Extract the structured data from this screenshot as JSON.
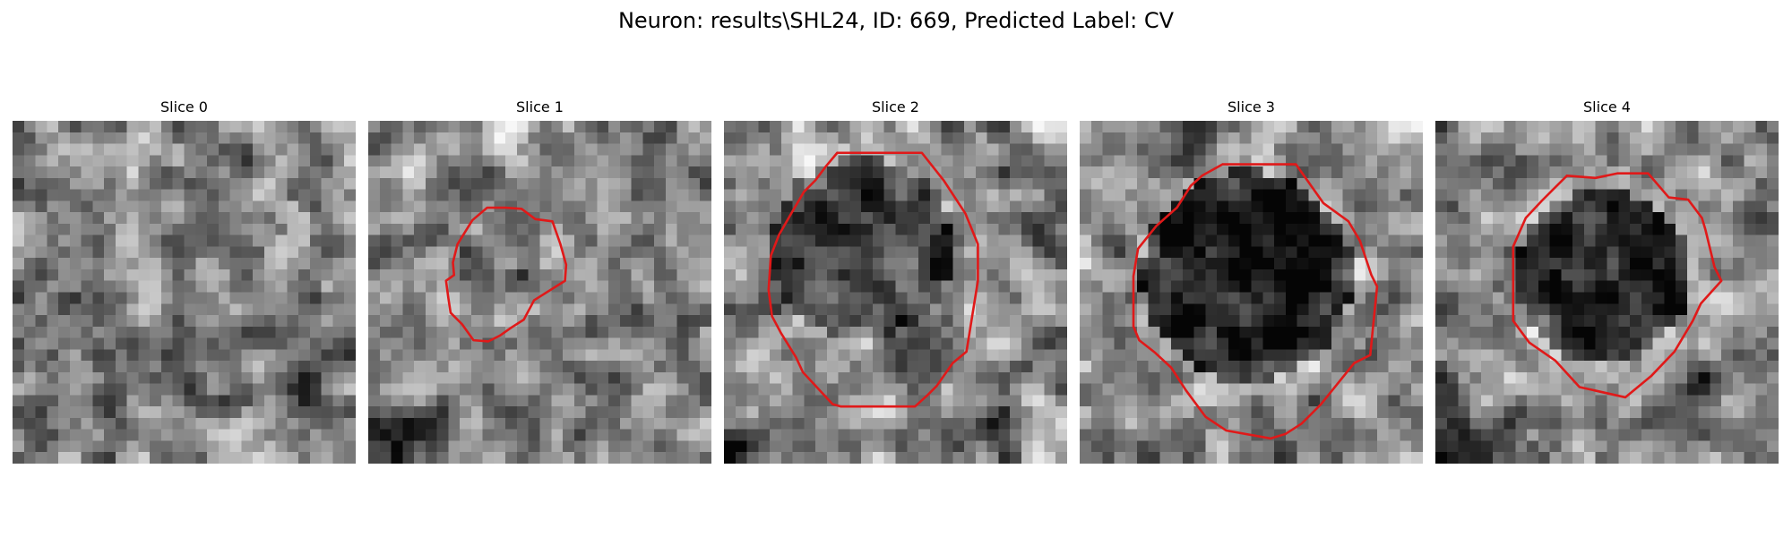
{
  "figure": {
    "title": "Neuron: results\\SHL24, ID: 669, Predicted Label: CV"
  },
  "colors": {
    "background": "#ffffff",
    "contour": "#e01919",
    "text": "#000000"
  },
  "slices": [
    {
      "title": "Slice 0",
      "has_contour": false
    },
    {
      "title": "Slice 1",
      "has_contour": true
    },
    {
      "title": "Slice 2",
      "has_contour": true
    },
    {
      "title": "Slice 3",
      "has_contour": true
    },
    {
      "title": "Slice 4",
      "has_contour": true
    }
  ]
}
